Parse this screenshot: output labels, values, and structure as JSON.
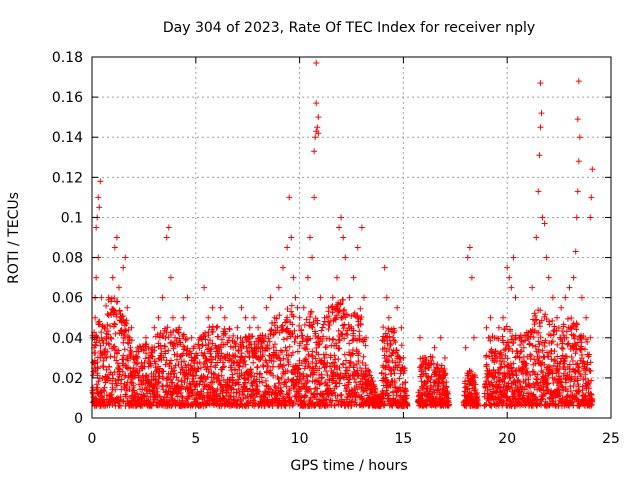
{
  "chart_data": {
    "type": "scatter",
    "title": "Day 304 of 2023, Rate Of TEC Index for receiver nply",
    "xlabel": "GPS time / hours",
    "ylabel": "ROTI / TECUs",
    "xlim": [
      0,
      25
    ],
    "ylim": [
      0,
      0.18
    ],
    "xticks": [
      0,
      5,
      10,
      15,
      20,
      25
    ],
    "xtick_labels": [
      "0",
      "5",
      "10",
      "15",
      "20",
      "25"
    ],
    "yticks": [
      0,
      0.02,
      0.04,
      0.06,
      0.08,
      0.1,
      0.12,
      0.14,
      0.16,
      0.18
    ],
    "ytick_labels": [
      "0",
      "0.02",
      "0.04",
      "0.06",
      "0.08",
      "0.1",
      "0.12",
      "0.14",
      "0.16",
      "0.18"
    ],
    "grid": true,
    "marker": "plus",
    "color": "#ff0000",
    "series": [
      {
        "points": [
          [
            0.05,
            0.012
          ],
          [
            0.1,
            0.035
          ],
          [
            0.15,
            0.06
          ],
          [
            0.2,
            0.095
          ],
          [
            0.25,
            0.1
          ],
          [
            0.3,
            0.11
          ],
          [
            0.35,
            0.105
          ],
          [
            0.4,
            0.118
          ],
          [
            0.3,
            0.08
          ],
          [
            0.2,
            0.07
          ],
          [
            0.15,
            0.05
          ],
          [
            0.25,
            0.04
          ],
          [
            0.4,
            0.03
          ],
          [
            0.45,
            0.06
          ],
          [
            0.5,
            0.02
          ],
          [
            0.6,
            0.045
          ],
          [
            0.7,
            0.03
          ],
          [
            0.8,
            0.06
          ],
          [
            0.9,
            0.04
          ],
          [
            1.0,
            0.07
          ],
          [
            1.1,
            0.085
          ],
          [
            1.2,
            0.09
          ],
          [
            1.3,
            0.065
          ],
          [
            1.4,
            0.05
          ],
          [
            1.5,
            0.075
          ],
          [
            1.6,
            0.08
          ],
          [
            1.7,
            0.055
          ],
          [
            1.8,
            0.04
          ],
          [
            1.9,
            0.045
          ],
          [
            2.0,
            0.03
          ],
          [
            2.2,
            0.035
          ],
          [
            2.4,
            0.025
          ],
          [
            2.6,
            0.04
          ],
          [
            2.8,
            0.03
          ],
          [
            3.0,
            0.045
          ],
          [
            3.2,
            0.05
          ],
          [
            3.4,
            0.06
          ],
          [
            3.6,
            0.09
          ],
          [
            3.7,
            0.095
          ],
          [
            3.8,
            0.07
          ],
          [
            3.9,
            0.05
          ],
          [
            4.0,
            0.04
          ],
          [
            4.2,
            0.045
          ],
          [
            4.4,
            0.05
          ],
          [
            4.6,
            0.06
          ],
          [
            4.8,
            0.04
          ],
          [
            5.0,
            0.03
          ],
          [
            5.2,
            0.04
          ],
          [
            5.4,
            0.065
          ],
          [
            5.6,
            0.05
          ],
          [
            5.8,
            0.055
          ],
          [
            6.0,
            0.045
          ],
          [
            6.2,
            0.055
          ],
          [
            6.4,
            0.05
          ],
          [
            6.6,
            0.04
          ],
          [
            6.8,
            0.035
          ],
          [
            7.0,
            0.045
          ],
          [
            7.2,
            0.055
          ],
          [
            7.4,
            0.05
          ],
          [
            7.6,
            0.045
          ],
          [
            7.8,
            0.05
          ],
          [
            8.0,
            0.045
          ],
          [
            8.2,
            0.04
          ],
          [
            8.4,
            0.055
          ],
          [
            8.6,
            0.06
          ],
          [
            8.8,
            0.05
          ],
          [
            9.0,
            0.065
          ],
          [
            9.2,
            0.075
          ],
          [
            9.4,
            0.085
          ],
          [
            9.5,
            0.11
          ],
          [
            9.6,
            0.09
          ],
          [
            9.7,
            0.07
          ],
          [
            9.8,
            0.06
          ],
          [
            9.9,
            0.055
          ],
          [
            10.0,
            0.05
          ],
          [
            10.2,
            0.055
          ],
          [
            10.4,
            0.07
          ],
          [
            10.5,
            0.09
          ],
          [
            10.6,
            0.08
          ],
          [
            10.7,
            0.11
          ],
          [
            10.75,
            0.14
          ],
          [
            10.8,
            0.143
          ],
          [
            10.85,
            0.145
          ],
          [
            10.9,
            0.15
          ],
          [
            10.8,
            0.157
          ],
          [
            10.8,
            0.177
          ],
          [
            10.7,
            0.133
          ],
          [
            10.9,
            0.142
          ],
          [
            11.0,
            0.06
          ],
          [
            11.2,
            0.05
          ],
          [
            11.4,
            0.055
          ],
          [
            11.6,
            0.06
          ],
          [
            11.8,
            0.07
          ],
          [
            11.9,
            0.095
          ],
          [
            12.0,
            0.1
          ],
          [
            12.1,
            0.09
          ],
          [
            12.2,
            0.08
          ],
          [
            12.4,
            0.06
          ],
          [
            12.6,
            0.07
          ],
          [
            12.8,
            0.085
          ],
          [
            13.0,
            0.095
          ],
          [
            13.1,
            0.06
          ],
          [
            13.2,
            0.04
          ],
          [
            14.1,
            0.075
          ],
          [
            14.2,
            0.06
          ],
          [
            14.3,
            0.05
          ],
          [
            14.5,
            0.04
          ],
          [
            14.7,
            0.055
          ],
          [
            14.9,
            0.045
          ],
          [
            15.0,
            0.03
          ],
          [
            15.8,
            0.04
          ],
          [
            16.0,
            0.03
          ],
          [
            16.2,
            0.025
          ],
          [
            16.5,
            0.035
          ],
          [
            16.8,
            0.04
          ],
          [
            17.0,
            0.03
          ],
          [
            18.0,
            0.035
          ],
          [
            18.1,
            0.08
          ],
          [
            18.2,
            0.085
          ],
          [
            18.3,
            0.07
          ],
          [
            18.4,
            0.04
          ],
          [
            19.0,
            0.045
          ],
          [
            19.2,
            0.05
          ],
          [
            19.4,
            0.04
          ],
          [
            19.6,
            0.045
          ],
          [
            19.8,
            0.05
          ],
          [
            20.0,
            0.075
          ],
          [
            20.1,
            0.07
          ],
          [
            20.2,
            0.065
          ],
          [
            20.3,
            0.08
          ],
          [
            20.4,
            0.06
          ],
          [
            20.6,
            0.04
          ],
          [
            20.8,
            0.035
          ],
          [
            21.0,
            0.04
          ],
          [
            21.2,
            0.065
          ],
          [
            21.4,
            0.09
          ],
          [
            21.5,
            0.113
          ],
          [
            21.55,
            0.131
          ],
          [
            21.6,
            0.145
          ],
          [
            21.65,
            0.152
          ],
          [
            21.6,
            0.167
          ],
          [
            21.7,
            0.1
          ],
          [
            21.8,
            0.097
          ],
          [
            21.9,
            0.08
          ],
          [
            22.0,
            0.07
          ],
          [
            22.2,
            0.06
          ],
          [
            22.4,
            0.05
          ],
          [
            22.6,
            0.055
          ],
          [
            22.8,
            0.06
          ],
          [
            23.0,
            0.065
          ],
          [
            23.2,
            0.07
          ],
          [
            23.3,
            0.083
          ],
          [
            23.35,
            0.1
          ],
          [
            23.4,
            0.113
          ],
          [
            23.45,
            0.128
          ],
          [
            23.5,
            0.14
          ],
          [
            23.4,
            0.149
          ],
          [
            23.45,
            0.168
          ],
          [
            23.6,
            0.06
          ],
          [
            23.8,
            0.05
          ],
          [
            24.0,
            0.1
          ],
          [
            24.05,
            0.11
          ],
          [
            24.1,
            0.124
          ],
          [
            24.0,
            0.04
          ]
        ]
      }
    ],
    "seed": 304
  }
}
